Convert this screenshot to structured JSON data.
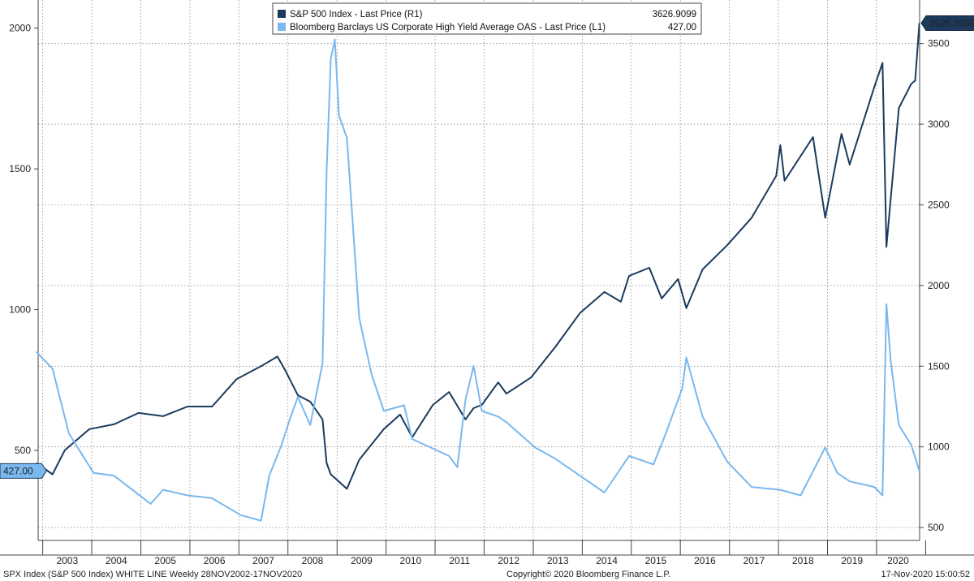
{
  "chart_data": {
    "type": "line",
    "legend_position": "top-center",
    "grid": true,
    "x_range": [
      "2002-11-28",
      "2020-11-17"
    ],
    "x_tick_labels": [
      "2003",
      "2004",
      "2005",
      "2006",
      "2007",
      "2008",
      "2009",
      "2010",
      "2011",
      "2012",
      "2013",
      "2014",
      "2015",
      "2016",
      "2017",
      "2018",
      "2019",
      "2020"
    ],
    "y_left": {
      "range": [
        180,
        2100
      ],
      "ticks": [
        500,
        1000,
        1500,
        2000
      ]
    },
    "y_right": {
      "range": [
        420,
        3770
      ],
      "ticks": [
        500,
        1000,
        1500,
        2000,
        2500,
        3000,
        3500
      ]
    },
    "series": [
      {
        "name": "S&P 500 Index - Last Price (R1)",
        "axis": "right",
        "color": "#1b3a5e",
        "last_value": "3626.9099",
        "x": [
          "2002-11",
          "2003-03",
          "2003-06",
          "2003-12",
          "2004-06",
          "2004-12",
          "2005-06",
          "2005-12",
          "2006-06",
          "2006-12",
          "2007-06",
          "2007-10",
          "2007-12",
          "2008-03",
          "2008-06",
          "2008-09",
          "2008-10",
          "2008-11",
          "2009-03",
          "2009-06",
          "2009-12",
          "2010-04",
          "2010-07",
          "2010-12",
          "2011-04",
          "2011-08",
          "2011-10",
          "2011-12",
          "2012-04",
          "2012-06",
          "2012-12",
          "2013-06",
          "2013-12",
          "2014-06",
          "2014-10",
          "2014-12",
          "2015-05",
          "2015-08",
          "2015-12",
          "2016-02",
          "2016-06",
          "2016-12",
          "2017-06",
          "2017-12",
          "2018-01",
          "2018-02",
          "2018-09",
          "2018-12",
          "2019-04",
          "2019-06",
          "2019-12",
          "2020-02",
          "2020-03",
          "2020-06",
          "2020-09",
          "2020-10",
          "2020-11"
        ],
        "y": [
          900,
          830,
          980,
          1110,
          1140,
          1210,
          1190,
          1250,
          1250,
          1420,
          1500,
          1560,
          1470,
          1320,
          1280,
          1170,
          900,
          830,
          740,
          920,
          1110,
          1200,
          1060,
          1260,
          1340,
          1170,
          1240,
          1260,
          1400,
          1330,
          1430,
          1620,
          1830,
          1960,
          1900,
          2060,
          2110,
          1920,
          2040,
          1860,
          2100,
          2250,
          2420,
          2680,
          2870,
          2650,
          2920,
          2420,
          2940,
          2750,
          3230,
          3380,
          2240,
          3100,
          3250,
          3270,
          3626.91
        ]
      },
      {
        "name": "Bloomberg Barclays US Corporate High Yield Average OAS - Last Price (L1)",
        "axis": "left",
        "color": "#7ab8ee",
        "last_value": "427.00",
        "x": [
          "2002-11",
          "2003-03",
          "2003-07",
          "2004-01",
          "2004-06",
          "2005-03",
          "2005-06",
          "2005-12",
          "2006-06",
          "2007-01",
          "2007-06",
          "2007-08",
          "2007-11",
          "2008-01",
          "2008-03",
          "2008-06",
          "2008-09",
          "2008-10",
          "2008-11",
          "2008-12",
          "2009-01",
          "2009-03",
          "2009-06",
          "2009-09",
          "2009-12",
          "2010-05",
          "2010-07",
          "2011-04",
          "2011-06",
          "2011-08",
          "2011-10",
          "2011-12",
          "2012-04",
          "2012-06",
          "2013-01",
          "2013-06",
          "2014-06",
          "2014-12",
          "2015-06",
          "2015-09",
          "2016-01",
          "2016-02",
          "2016-06",
          "2016-12",
          "2017-06",
          "2018-01",
          "2018-06",
          "2018-12",
          "2019-03",
          "2019-06",
          "2019-12",
          "2020-02",
          "2020-03",
          "2020-04",
          "2020-06",
          "2020-09",
          "2020-11"
        ],
        "y": [
          850,
          790,
          560,
          420,
          410,
          310,
          360,
          340,
          330,
          270,
          250,
          410,
          520,
          610,
          690,
          590,
          810,
          1490,
          1890,
          1960,
          1690,
          1610,
          970,
          770,
          640,
          660,
          540,
          480,
          440,
          680,
          800,
          640,
          620,
          600,
          510,
          470,
          350,
          480,
          450,
          560,
          720,
          830,
          620,
          460,
          370,
          360,
          340,
          510,
          420,
          390,
          370,
          340,
          1020,
          820,
          590,
          520,
          427
        ]
      }
    ]
  },
  "footer": {
    "left": "SPX Index (S&P 500 Index) WHITE LINE  Weekly 28NOV2002-17NOV2020",
    "center": "Copyright© 2020 Bloomberg Finance L.P.",
    "right": "17-Nov-2020 15:00:52"
  }
}
